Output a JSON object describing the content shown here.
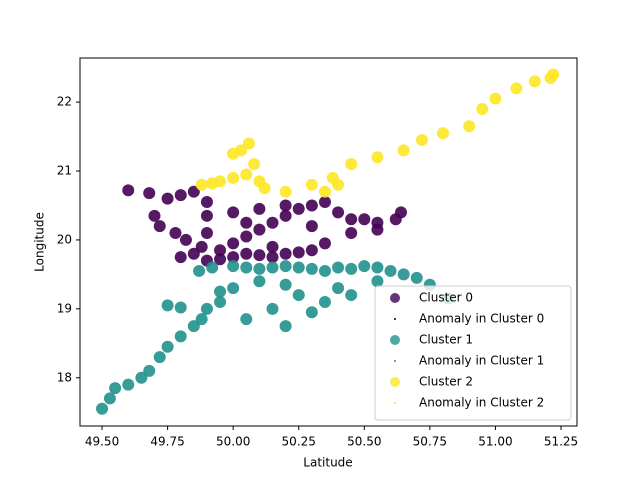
{
  "chart_data": {
    "type": "scatter",
    "x_label": "Latitude",
    "y_label": "Longitude",
    "xlim": [
      49.416,
      51.311
    ],
    "ylim": [
      17.3,
      22.64
    ],
    "xticks": [
      {
        "value": 49.5,
        "label": "49.50"
      },
      49.75,
      {
        "value": 50.0,
        "label": "50.00"
      },
      50.25,
      {
        "value": 50.5,
        "label": "50.50"
      },
      50.75,
      {
        "value": 51.0,
        "label": "51.00"
      },
      51.25
    ],
    "yticks": [
      18,
      19,
      20,
      21,
      22
    ],
    "legend": "lower right",
    "series": [
      {
        "name": "Cluster 0",
        "color": "#440154",
        "marker": "large",
        "x": [
          49.6,
          49.68,
          49.75,
          49.8,
          49.85,
          49.9,
          49.7,
          49.72,
          49.78,
          49.82,
          49.88,
          49.95,
          50.0,
          50.05,
          50.1,
          50.15,
          50.2,
          50.25,
          50.3,
          50.35,
          50.4,
          50.45,
          50.5,
          50.55,
          50.62,
          50.64,
          49.8,
          49.85,
          49.9,
          49.95,
          50.0,
          50.05,
          50.1,
          50.15,
          50.2,
          50.25,
          50.3,
          49.9,
          50.0,
          50.1,
          50.2,
          50.3,
          50.45,
          50.55,
          50.35,
          49.9,
          50.05,
          50.15
        ],
        "y": [
          20.72,
          20.68,
          20.6,
          20.65,
          20.7,
          20.55,
          20.35,
          20.2,
          20.1,
          20.0,
          19.9,
          19.85,
          19.95,
          20.05,
          20.15,
          20.25,
          20.35,
          20.45,
          20.5,
          20.55,
          20.4,
          20.3,
          20.3,
          20.25,
          20.3,
          20.4,
          19.75,
          19.8,
          19.7,
          19.72,
          19.75,
          19.8,
          19.78,
          19.75,
          19.8,
          19.82,
          19.85,
          20.35,
          20.4,
          20.45,
          20.5,
          20.2,
          20.1,
          20.15,
          19.95,
          20.1,
          20.25,
          19.9
        ]
      },
      {
        "name": "Anomaly in Cluster 0",
        "color": "#000000",
        "marker": "small",
        "x": [],
        "y": []
      },
      {
        "name": "Cluster 1",
        "color": "#21918c",
        "marker": "large",
        "x": [
          49.5,
          49.53,
          49.55,
          49.6,
          49.65,
          49.68,
          49.72,
          49.75,
          49.8,
          49.85,
          49.88,
          49.9,
          49.95,
          49.87,
          49.92,
          50.0,
          50.05,
          50.1,
          50.15,
          50.2,
          50.25,
          50.3,
          50.35,
          50.4,
          50.45,
          50.5,
          50.55,
          50.6,
          50.65,
          50.7,
          50.75,
          50.82,
          50.0,
          50.05,
          50.15,
          50.2,
          50.25,
          50.3,
          50.35,
          50.45,
          49.8,
          49.95,
          50.1,
          50.2,
          50.4,
          49.75,
          50.55
        ],
        "y": [
          17.55,
          17.7,
          17.85,
          17.9,
          18.0,
          18.1,
          18.3,
          18.45,
          18.6,
          18.75,
          18.85,
          19.0,
          19.1,
          19.55,
          19.6,
          19.62,
          19.6,
          19.58,
          19.6,
          19.62,
          19.6,
          19.58,
          19.55,
          19.6,
          19.58,
          19.62,
          19.6,
          19.55,
          19.5,
          19.45,
          19.35,
          19.15,
          19.3,
          18.85,
          19.0,
          18.75,
          19.2,
          18.95,
          19.1,
          19.2,
          19.02,
          19.25,
          19.4,
          19.35,
          19.3,
          19.05,
          19.4
        ]
      },
      {
        "name": "Anomaly in Cluster 1",
        "color": "#21918c",
        "marker": "small",
        "x": [],
        "y": []
      },
      {
        "name": "Cluster 2",
        "color": "#fde725",
        "marker": "large",
        "x": [
          50.2,
          50.3,
          50.38,
          50.45,
          50.55,
          50.65,
          50.72,
          50.8,
          50.9,
          50.95,
          51.0,
          51.08,
          51.15,
          51.21,
          51.22,
          49.88,
          49.95,
          50.0,
          50.05,
          50.08,
          50.03,
          50.06,
          50.0,
          50.1,
          50.12,
          49.92,
          50.35,
          50.4
        ],
        "y": [
          20.7,
          20.8,
          20.9,
          21.1,
          21.2,
          21.3,
          21.45,
          21.55,
          21.65,
          21.9,
          22.05,
          22.2,
          22.3,
          22.35,
          22.4,
          20.8,
          20.85,
          20.9,
          20.95,
          21.1,
          21.3,
          21.4,
          21.25,
          20.85,
          20.75,
          20.82,
          20.7,
          20.8
        ]
      },
      {
        "name": "Anomaly in Cluster 2",
        "color": "#fde725",
        "marker": "small",
        "x": [],
        "y": []
      }
    ]
  }
}
